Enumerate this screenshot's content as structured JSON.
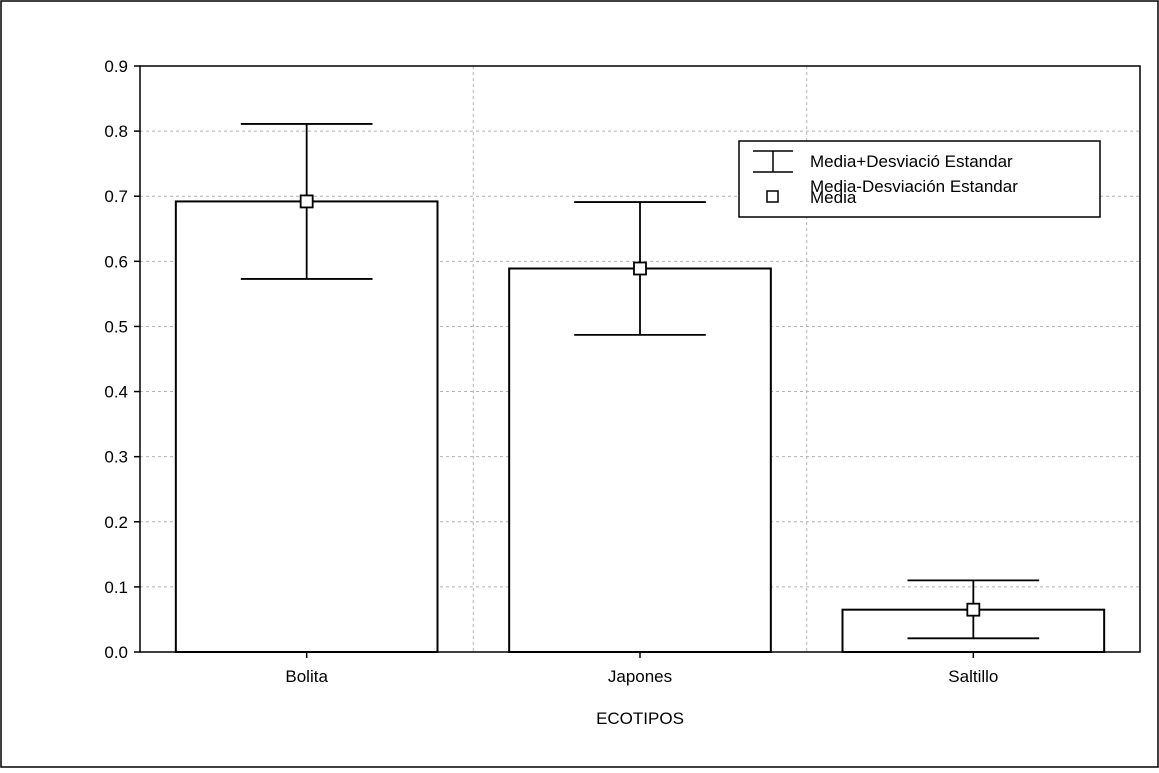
{
  "chart_data": {
    "type": "bar",
    "title": "",
    "xlabel": "ECOTIPOS",
    "ylabel": "",
    "categories": [
      "Bolita",
      "Japones",
      "Saltillo"
    ],
    "values": [
      0.692,
      0.589,
      0.065
    ],
    "error_upper": [
      0.811,
      0.691,
      0.11
    ],
    "error_lower": [
      0.573,
      0.487,
      0.021
    ],
    "ylim": [
      0.0,
      0.9
    ],
    "yticks": [
      "0.0",
      "0.1",
      "0.2",
      "0.3",
      "0.4",
      "0.5",
      "0.6",
      "0.7",
      "0.8",
      "0.9"
    ],
    "grid": true,
    "legend_position": "top-right",
    "legend": {
      "upper_label": "Media+Desviació Estandar",
      "lower_label": "Media-Desviación Estandar",
      "mean_label": "Media"
    },
    "colors": {
      "bar_fill": "#ffffff",
      "stroke": "#000000",
      "grid": "#b4b4b4"
    }
  }
}
